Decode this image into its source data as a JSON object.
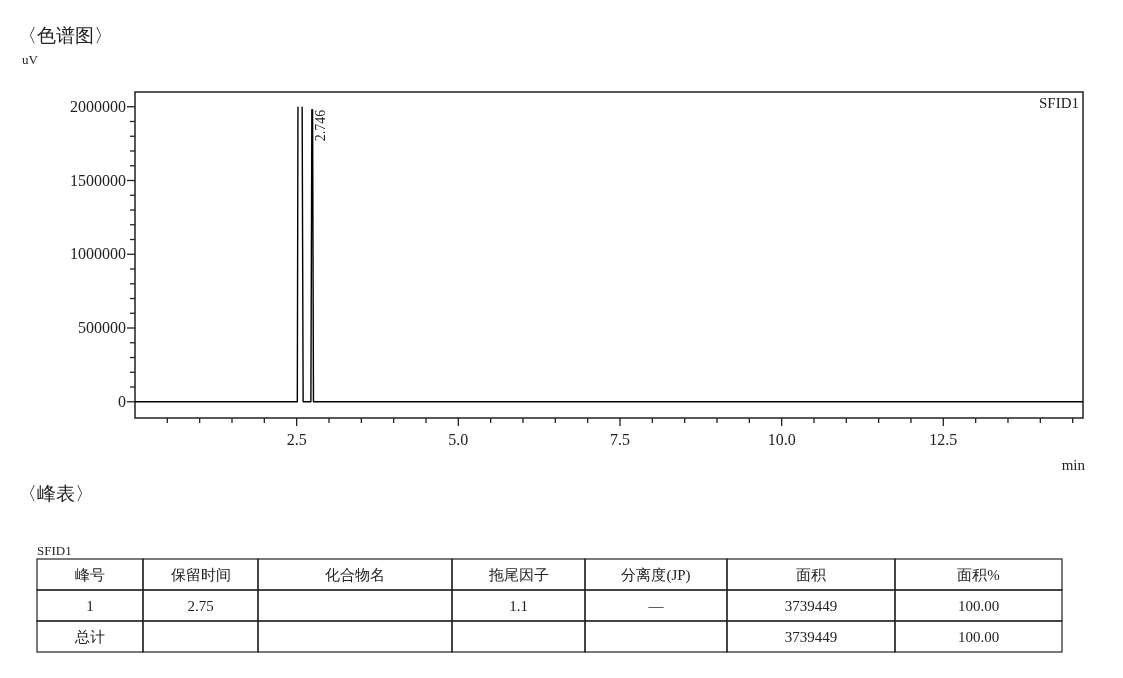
{
  "chart_data": [
    {
      "type": "line",
      "title": "〈色谱图〉",
      "ylabel": "uV",
      "xlabel": "min",
      "xlim": [
        0,
        14.66
      ],
      "ylim": [
        -110000,
        2100000
      ],
      "xticks": [
        {
          "value": 0.5,
          "label": null
        },
        {
          "value": 1,
          "label": null
        },
        {
          "value": 1.5,
          "label": null
        },
        {
          "value": 2,
          "label": null
        },
        2.5,
        {
          "value": 3,
          "label": null
        },
        {
          "value": 3.5,
          "label": null
        },
        {
          "value": 4,
          "label": null
        },
        {
          "value": 4.5,
          "label": null
        },
        {
          "value": 5,
          "label": "5.0"
        },
        {
          "value": 5.5,
          "label": null
        },
        {
          "value": 6,
          "label": null
        },
        {
          "value": 6.5,
          "label": null
        },
        {
          "value": 7,
          "label": null
        },
        7.5,
        {
          "value": 8,
          "label": null
        },
        {
          "value": 8.5,
          "label": null
        },
        {
          "value": 9,
          "label": null
        },
        {
          "value": 9.5,
          "label": null
        },
        {
          "value": 10,
          "label": "10.0"
        },
        {
          "value": 10.5,
          "label": null
        },
        {
          "value": 11,
          "label": null
        },
        {
          "value": 11.5,
          "label": null
        },
        {
          "value": 12,
          "label": null
        },
        12.5,
        {
          "value": 13,
          "label": null
        },
        {
          "value": 13.5,
          "label": null
        },
        {
          "value": 14,
          "label": null
        },
        {
          "value": 14.5,
          "label": null
        }
      ],
      "yticks": [
        0,
        {
          "value": 100000,
          "label": null
        },
        {
          "value": 200000,
          "label": null
        },
        {
          "value": 300000,
          "label": null
        },
        {
          "value": 400000,
          "label": null
        },
        500000,
        {
          "value": 600000,
          "label": null
        },
        {
          "value": 700000,
          "label": null
        },
        {
          "value": 800000,
          "label": null
        },
        {
          "value": 900000,
          "label": null
        },
        1000000,
        {
          "value": 1100000,
          "label": null
        },
        {
          "value": 1200000,
          "label": null
        },
        {
          "value": 1300000,
          "label": null
        },
        {
          "value": 1400000,
          "label": null
        },
        1500000,
        {
          "value": 1600000,
          "label": null
        },
        {
          "value": 1700000,
          "label": null
        },
        {
          "value": 1800000,
          "label": null
        },
        {
          "value": 1900000,
          "label": null
        },
        2000000
      ],
      "grid": false,
      "marker": "none",
      "line_style": "solid",
      "series": [
        {
          "color": "#000000",
          "x": [
            0,
            2.51,
            2.52
          ],
          "values": [
            0,
            0,
            2000000
          ]
        },
        {
          "color": "#000000",
          "x": [
            2.585,
            2.6,
            2.62,
            2.72,
            2.735,
            2.746,
            2.76,
            2.8,
            3.3,
            14.66
          ],
          "values": [
            2000000,
            0,
            0,
            0,
            1980000,
            1980000,
            0,
            0,
            0,
            0
          ]
        }
      ],
      "annotations": [
        "SFID1",
        {
          "text": "2.746",
          "x": 2.746,
          "y": 1980000
        }
      ]
    },
    {
      "type": "other",
      "title": "〈峰表〉",
      "subtitle": "SFID1",
      "categories": [
        "峰号",
        "保留时间",
        "化合物名",
        "拖尾因子",
        "分离度(JP)",
        "面积",
        "面积%"
      ],
      "cell_labels": [
        [
          "1",
          "2.75",
          null,
          "1.1",
          "—",
          "3739449",
          "100.00"
        ],
        [
          "总计",
          null,
          null,
          null,
          null,
          "3739449",
          "100.00"
        ]
      ]
    }
  ]
}
